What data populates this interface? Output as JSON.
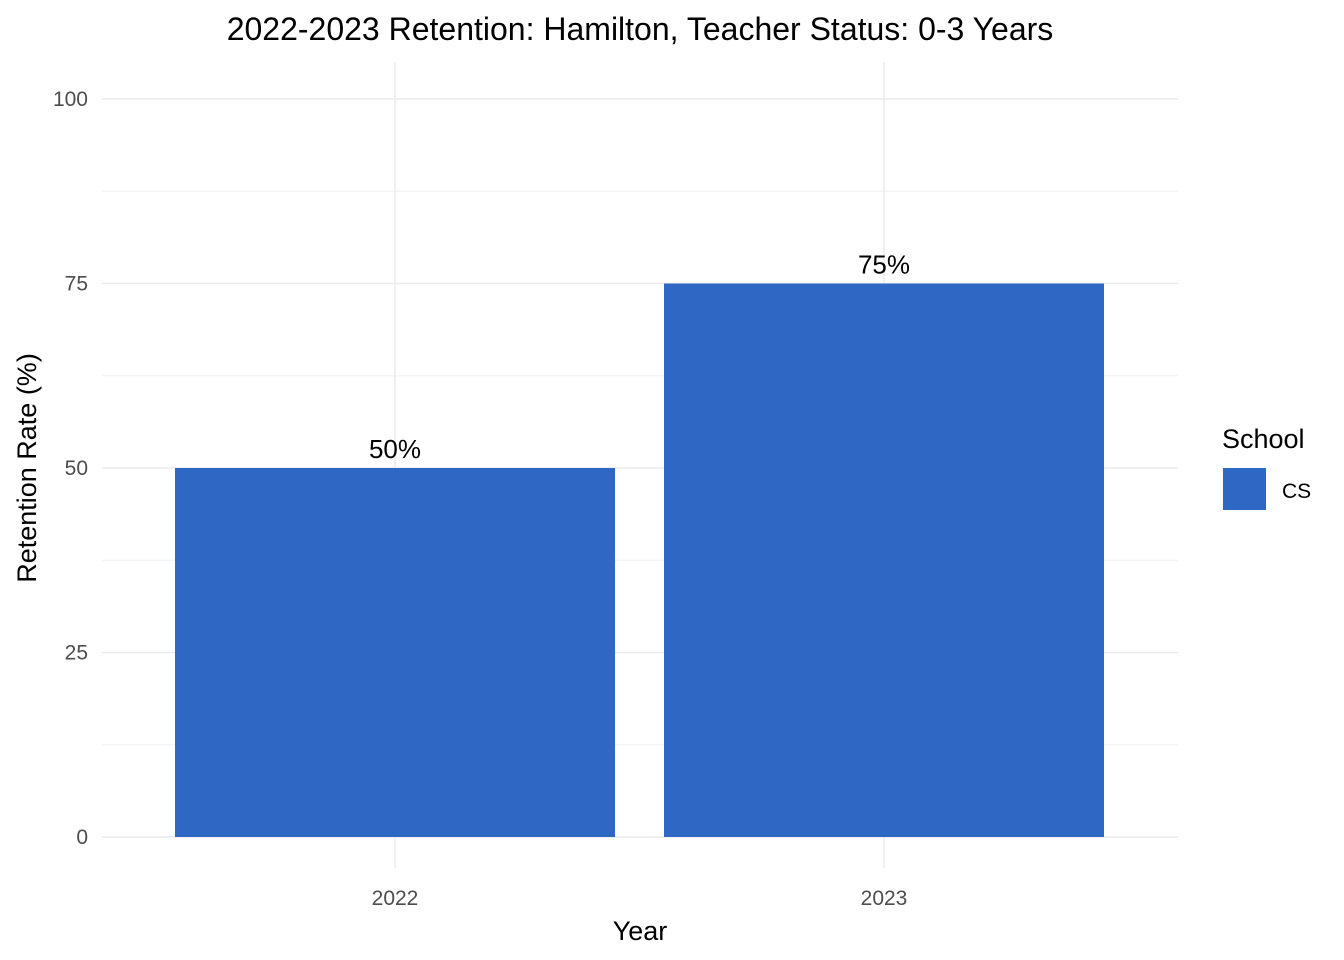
{
  "chart_data": {
    "type": "bar",
    "title": "2022-2023 Retention: Hamilton, Teacher Status: 0-3 Years",
    "xlabel": "Year",
    "ylabel": "Retention Rate (%)",
    "categories": [
      "2022",
      "2023"
    ],
    "series": [
      {
        "name": "CS",
        "values": [
          50,
          75
        ],
        "labels": [
          "50%",
          "75%"
        ],
        "color": "#2f68c4"
      }
    ],
    "ylim": [
      0,
      100
    ],
    "yticks": [
      0,
      25,
      50,
      75,
      100
    ],
    "ytick_labels": [
      "0",
      "25",
      "50",
      "75",
      "100"
    ],
    "grid": true,
    "legend": {
      "title": "School",
      "placement": "right"
    }
  }
}
